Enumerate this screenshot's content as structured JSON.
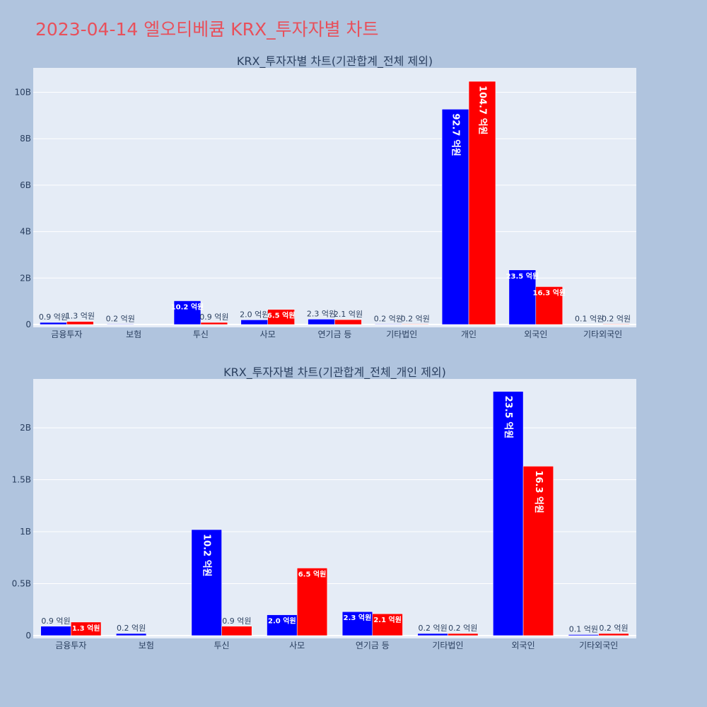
{
  "title": "2023-04-14 엘오티베큠 KRX_투자자별 차트",
  "colors": {
    "buy": "#0000ff",
    "sell": "#ff0000",
    "plot_bg": "#e5ecf6",
    "page_bg": "#b0c4de",
    "title": "#e8505b"
  },
  "chart_data": [
    {
      "type": "bar",
      "title": "KRX_투자자별 차트(기관합계_전체 제외)",
      "categories": [
        "금융투자",
        "보험",
        "투신",
        "사모",
        "연기금 등",
        "기타법인",
        "개인",
        "외국인",
        "기타외국인"
      ],
      "series": [
        {
          "values": [
            0.09,
            0.02,
            1.02,
            0.2,
            0.23,
            0.02,
            9.27,
            2.35,
            0.01
          ],
          "labels": [
            "0.9 억원",
            "0.2 억원",
            "10.2 억원",
            "2.0 억원",
            "2.3 억원",
            "0.2 억원",
            "92.7 억원",
            "23.5 억원",
            "0.1 억원"
          ]
        },
        {
          "values": [
            0.13,
            0,
            0.09,
            0.65,
            0.21,
            0.02,
            10.47,
            1.63,
            0.02
          ],
          "labels": [
            "1.3 억원",
            "",
            "0.9 억원",
            "6.5 억원",
            "2.1 억원",
            "0.2 억원",
            "104.7 억원",
            "16.3 억원",
            "0.2 억원"
          ]
        }
      ],
      "yticks": [
        0,
        2,
        4,
        6,
        8,
        10
      ],
      "ytick_labels": [
        "0",
        "2B",
        "4B",
        "6B",
        "8B",
        "10B"
      ],
      "ylim": [
        0,
        11.05
      ],
      "unit_note": "values in billions (B)"
    },
    {
      "type": "bar",
      "title": "KRX_투자자별 차트(기관합계_전체_개인 제외)",
      "categories": [
        "금융투자",
        "보험",
        "투신",
        "사모",
        "연기금 등",
        "기타법인",
        "외국인",
        "기타외국인"
      ],
      "series": [
        {
          "values": [
            0.09,
            0.02,
            1.02,
            0.2,
            0.23,
            0.02,
            2.35,
            0.01
          ],
          "labels": [
            "0.9 억원",
            "0.2 억원",
            "10.2 억원",
            "2.0 억원",
            "2.3 억원",
            "0.2 억원",
            "23.5 억원",
            "0.1 억원"
          ]
        },
        {
          "values": [
            0.13,
            0,
            0.09,
            0.65,
            0.21,
            0.02,
            1.63,
            0.02
          ],
          "labels": [
            "1.3 억원",
            "",
            "0.9 억원",
            "6.5 억원",
            "2.1 억원",
            "0.2 억원",
            "16.3 억원",
            "0.2 억원"
          ]
        }
      ],
      "yticks": [
        0,
        0.5,
        1,
        1.5,
        2
      ],
      "ytick_labels": [
        "0",
        "0.5B",
        "1B",
        "1.5B",
        "2B"
      ],
      "ylim": [
        0,
        2.47
      ]
    }
  ]
}
